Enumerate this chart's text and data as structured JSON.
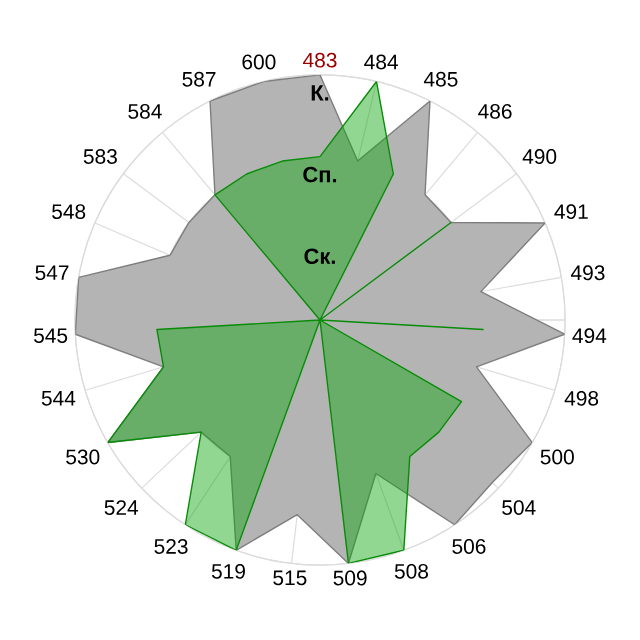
{
  "chart_data": {
    "type": "radar",
    "categories": [
      "483",
      "484",
      "485",
      "486",
      "490",
      "491",
      "493",
      "494",
      "498",
      "500",
      "504",
      "506",
      "508",
      "509",
      "515",
      "519",
      "523",
      "524",
      "530",
      "544",
      "545",
      "547",
      "548",
      "583",
      "584",
      "587",
      "600"
    ],
    "series": [
      {
        "color": "#b4b4b4",
        "values": [
          3,
          2,
          3,
          2,
          2,
          3,
          2,
          3,
          2,
          3,
          2.9,
          3,
          2,
          3,
          2.4,
          3,
          2,
          2,
          3,
          2,
          3,
          3,
          2,
          2,
          2,
          3,
          3
        ]
      },
      {
        "color": "#0aa50a",
        "values": [
          2,
          3,
          2,
          0,
          2,
          0,
          0,
          2,
          0,
          2,
          2,
          2,
          3,
          3,
          0,
          3,
          3,
          2,
          3,
          2,
          2,
          0,
          0,
          0,
          2,
          2,
          2
        ]
      }
    ],
    "ylim": [
      0,
      3
    ],
    "yticks": [
      {
        "value": 1,
        "label": "Ск."
      },
      {
        "value": 2,
        "label": "Сп."
      },
      {
        "value": 3,
        "label": "К."
      }
    ],
    "grid": true
  }
}
